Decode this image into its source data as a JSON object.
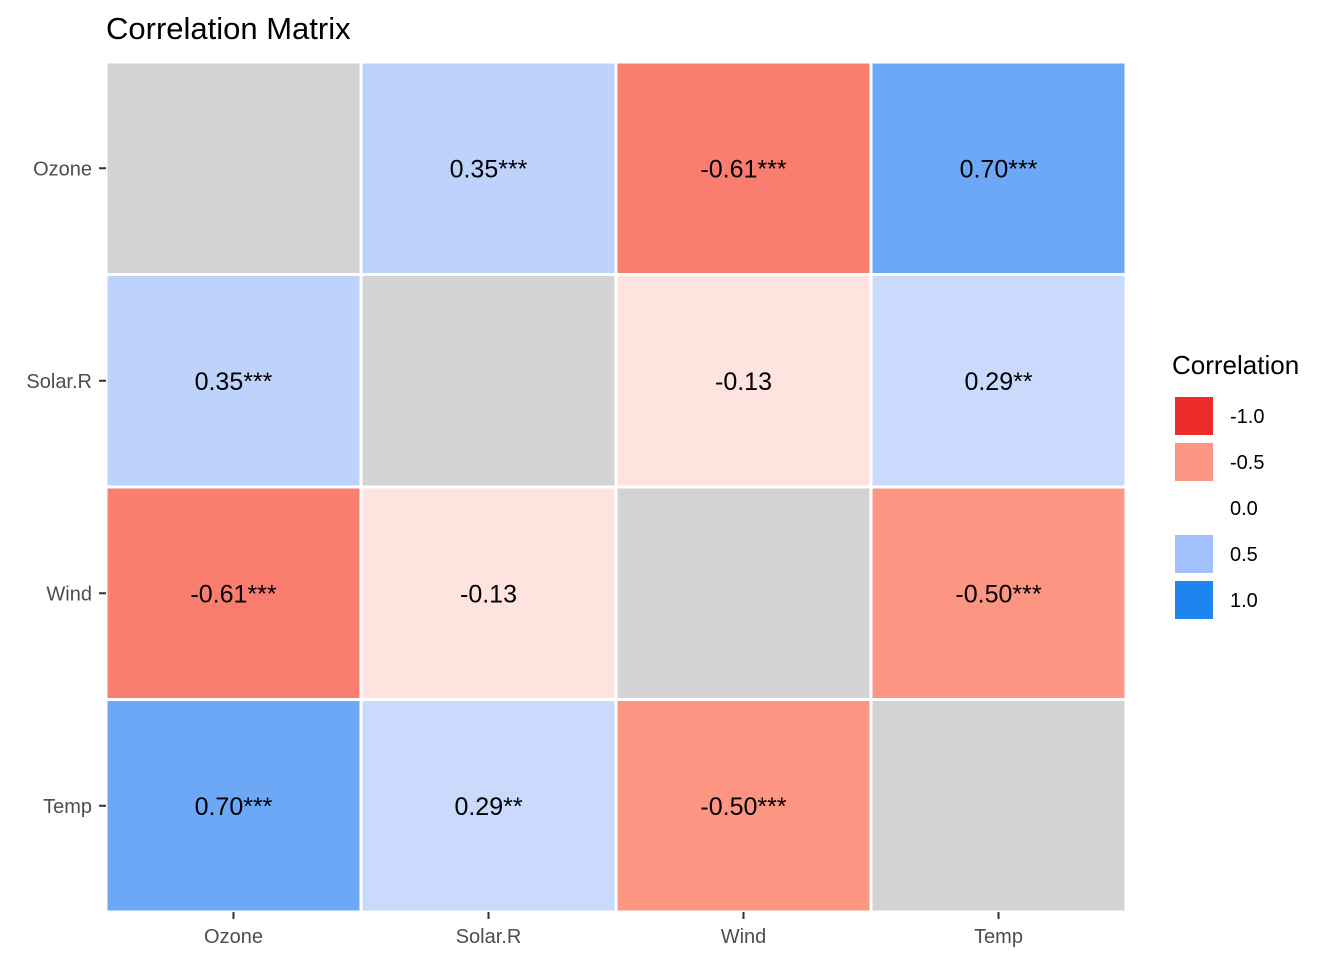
{
  "chart_data": {
    "type": "heatmap",
    "title": "Correlation Matrix",
    "x_categories": [
      "Ozone",
      "Solar.R",
      "Wind",
      "Temp"
    ],
    "y_categories": [
      "Ozone",
      "Solar.R",
      "Wind",
      "Temp"
    ],
    "values": [
      [
        null,
        0.35,
        -0.61,
        0.7
      ],
      [
        0.35,
        null,
        -0.13,
        0.29
      ],
      [
        -0.61,
        -0.13,
        null,
        -0.5
      ],
      [
        0.7,
        0.29,
        -0.5,
        null
      ]
    ],
    "labels": [
      [
        "",
        "0.35***",
        "-0.61***",
        "0.70***"
      ],
      [
        "0.35***",
        "",
        "-0.13",
        "0.29**"
      ],
      [
        "-0.61***",
        "-0.13",
        "",
        "-0.50***"
      ],
      [
        "0.70***",
        "0.29**",
        "-0.50***",
        ""
      ]
    ],
    "diagonal_color": "#d3d3d3",
    "legend": {
      "title": "Correlation",
      "position": "right",
      "breaks": [
        {
          "label": "-1.0",
          "value": -1.0,
          "color": "#ee2b2b"
        },
        {
          "label": "-0.5",
          "value": -0.5,
          "color": "#fd9583"
        },
        {
          "label": "0.0",
          "value": 0.0,
          "color": "#ffffff"
        },
        {
          "label": "0.5",
          "value": 0.5,
          "color": "#a2c0fb"
        },
        {
          "label": "1.0",
          "value": 1.0,
          "color": "#1e85f0"
        }
      ]
    },
    "grid": false
  }
}
